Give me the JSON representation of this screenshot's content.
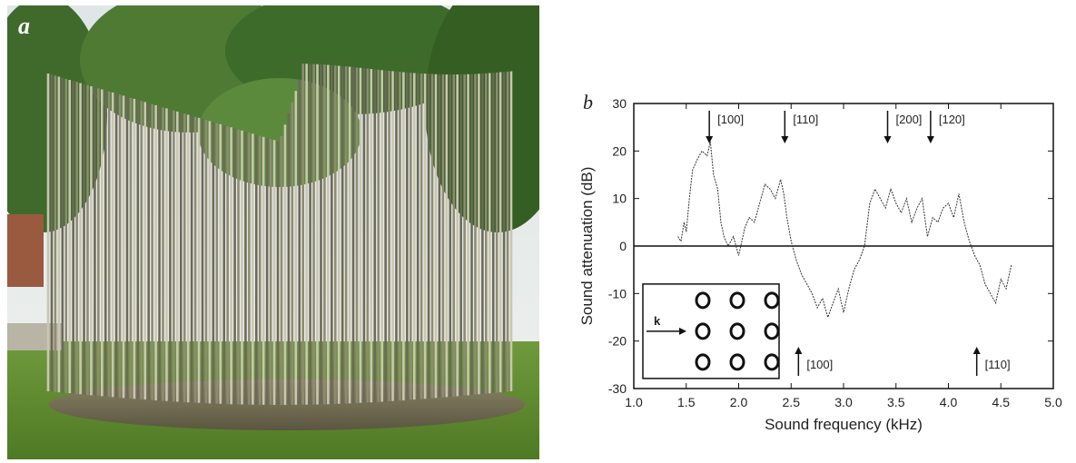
{
  "panel_a": {
    "label": "a"
  },
  "panel_b": {
    "label": "b"
  },
  "chart_data": {
    "type": "line",
    "xlabel": "Sound frequency (kHz)",
    "ylabel": "Sound attenuation (dB)",
    "xlim": [
      1.0,
      5.0
    ],
    "ylim": [
      -30,
      30
    ],
    "xticks": [
      1.0,
      1.5,
      2.0,
      2.5,
      3.0,
      3.5,
      4.0,
      4.5,
      5.0
    ],
    "xtick_labels": [
      "1.0",
      "1.5",
      "2.0",
      "2.5",
      "3.0",
      "3.5",
      "4.0",
      "4.5",
      "5.0"
    ],
    "yticks": [
      -30,
      -20,
      -10,
      0,
      10,
      20,
      30
    ],
    "ytick_labels": [
      "-30",
      "-20",
      "-10",
      "0",
      "10",
      "20",
      "30"
    ],
    "zero_line": true,
    "series": [
      {
        "x": [
          1.42,
          1.45,
          1.48,
          1.5,
          1.53,
          1.56,
          1.6,
          1.65,
          1.7,
          1.73,
          1.76,
          1.8,
          1.83,
          1.86,
          1.9,
          1.95,
          2.0,
          2.03,
          2.06,
          2.1,
          2.15,
          2.2,
          2.25,
          2.3,
          2.35,
          2.4,
          2.43,
          2.46,
          2.5,
          2.55,
          2.6,
          2.65,
          2.7,
          2.75,
          2.8,
          2.85,
          2.9,
          2.95,
          3.0,
          3.05,
          3.1,
          3.15,
          3.2,
          3.25,
          3.3,
          3.35,
          3.4,
          3.45,
          3.5,
          3.55,
          3.6,
          3.65,
          3.7,
          3.75,
          3.8,
          3.85,
          3.9,
          3.95,
          4.0,
          4.05,
          4.1,
          4.15,
          4.2,
          4.25,
          4.3,
          4.35,
          4.4,
          4.45,
          4.5,
          4.55,
          4.6
        ],
        "y": [
          2,
          1,
          5,
          3,
          10,
          16,
          18,
          20,
          19,
          22,
          15,
          12,
          5,
          2,
          0,
          2,
          -2,
          1,
          4,
          6,
          5,
          9,
          13,
          12,
          10,
          14,
          11,
          6,
          1,
          -3,
          -6,
          -8,
          -10,
          -13,
          -11,
          -15,
          -12,
          -9,
          -14,
          -9,
          -5,
          -3,
          0,
          9,
          12,
          10,
          8,
          12,
          9,
          7,
          10,
          5,
          8,
          10,
          2,
          6,
          5,
          8,
          9,
          6,
          11,
          5,
          1,
          -2,
          -4,
          -8,
          -10,
          -12,
          -7,
          -9,
          -4
        ]
      }
    ],
    "annotations": [
      {
        "text": "[100]",
        "x": 1.72,
        "arrow": "down"
      },
      {
        "text": "[110]",
        "x": 2.44,
        "arrow": "down"
      },
      {
        "text": "[200]",
        "x": 3.42,
        "arrow": "down"
      },
      {
        "text": "[120]",
        "x": 3.83,
        "arrow": "down"
      },
      {
        "text": "[100]",
        "x": 2.57,
        "arrow": "up"
      },
      {
        "text": "[110]",
        "x": 4.27,
        "arrow": "up"
      }
    ],
    "inset": {
      "vector_label": "k",
      "rows": 3,
      "cols": 3
    }
  }
}
